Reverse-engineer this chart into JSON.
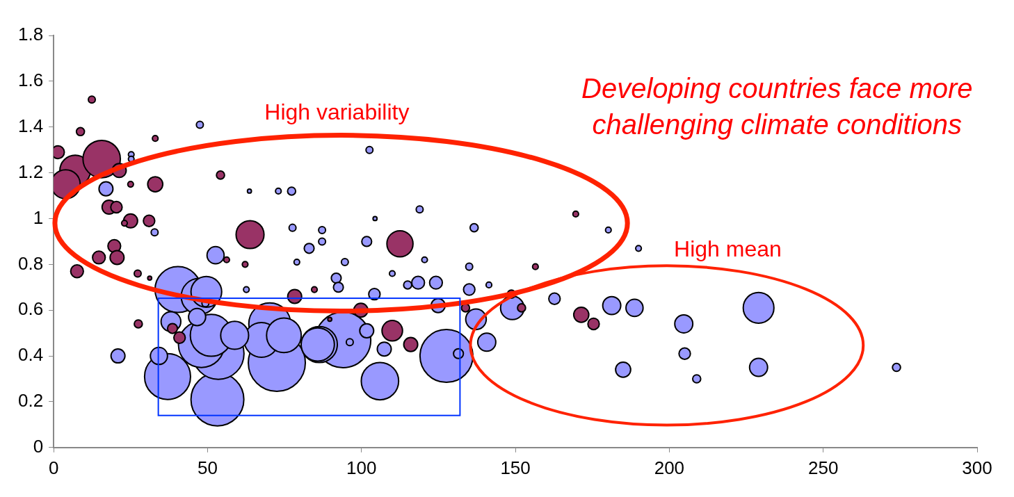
{
  "chart_data": {
    "type": "bubble",
    "xlim": [
      0,
      300
    ],
    "ylim": [
      0,
      1.8
    ],
    "xticks": [
      0,
      50,
      100,
      150,
      200,
      250,
      300
    ],
    "yticks": [
      0,
      0.2,
      0.4,
      0.6,
      0.8,
      1,
      1.2,
      1.4,
      1.6,
      1.8
    ],
    "grid": false,
    "legend": false,
    "annotations": [
      "High variability",
      "High mean",
      "Developing countries face more challenging climate conditions"
    ],
    "series": [
      {
        "color": "#993366",
        "x": [
          1.4,
          12.4,
          8.7,
          7,
          3.9,
          15.6,
          21.3,
          33,
          25,
          33,
          18,
          20.4,
          25,
          23,
          31,
          63.8,
          19.7,
          20.6,
          14.7,
          7.6,
          27.3,
          31.2,
          27.5,
          38.6,
          40.9,
          54.2,
          56.2,
          62.2,
          78.3,
          84.7,
          99.8,
          89.7,
          110,
          116,
          112.5,
          133.8,
          148.7,
          152,
          156.5,
          171.4,
          175.4,
          169.6
        ],
        "values": [
          1.29,
          1.52,
          1.38,
          1.21,
          1.15,
          1.26,
          1.21,
          1.35,
          1.15,
          1.15,
          1.05,
          1.05,
          0.99,
          0.98,
          0.99,
          0.93,
          0.88,
          0.83,
          0.83,
          0.77,
          0.76,
          0.74,
          0.54,
          0.52,
          0.48,
          1.19,
          0.82,
          0.8,
          0.66,
          0.69,
          0.6,
          0.56,
          0.51,
          0.45,
          0.89,
          0.61,
          0.67,
          0.61,
          0.79,
          0.58,
          0.54,
          1.02
        ],
        "sizes": [
          0.05,
          0.015,
          0.02,
          0.29,
          0.26,
          0.43,
          0.06,
          0.01,
          0.01,
          0.07,
          0.06,
          0.04,
          0.06,
          0.01,
          0.04,
          0.24,
          0.05,
          0.06,
          0.05,
          0.05,
          0.015,
          0.005,
          0.02,
          0.03,
          0.04,
          0.02,
          0.01,
          0.01,
          0.06,
          0.01,
          0.06,
          0.005,
          0.13,
          0.06,
          0.21,
          0.02,
          0.02,
          0.02,
          0.01,
          0.07,
          0.04,
          0.01
        ]
      },
      {
        "color": "#9999ff",
        "x": [
          72.5,
          94,
          53.2,
          127.6,
          53.5,
          37,
          48,
          40.4,
          70.2,
          51.2,
          106,
          47.3,
          86.3,
          67.5,
          74.8,
          85.8,
          49.6,
          229,
          58.8,
          149,
          137.2,
          38.1,
          140.7,
          181.3,
          204.7,
          229,
          52.6,
          46.6,
          34.2,
          188.7,
          185,
          17,
          20.9,
          107.4,
          101.7,
          124.9,
          118.4,
          124.2,
          135,
          104.2,
          162.7,
          205,
          83,
          101.7,
          91.8,
          92.5,
          131.5,
          77.3,
          136.6,
          115,
          208.9,
          273.8,
          47.5,
          102.6,
          118.9,
          32.8,
          77.6,
          87.2,
          87.2,
          94.6,
          135,
          96.2,
          49.3,
          25.2,
          25.2,
          73,
          120.5,
          79,
          110,
          141.4,
          62.6,
          180.2,
          190,
          104.4,
          63.6
        ],
        "values": [
          0.37,
          0.47,
          0.21,
          0.4,
          0.41,
          0.31,
          0.45,
          0.69,
          0.54,
          0.49,
          0.29,
          0.66,
          0.45,
          0.47,
          0.49,
          0.45,
          0.68,
          0.61,
          0.49,
          0.61,
          0.56,
          0.55,
          0.46,
          0.62,
          0.54,
          0.35,
          0.84,
          0.57,
          0.4,
          0.61,
          0.34,
          1.13,
          0.4,
          0.43,
          0.51,
          0.62,
          0.72,
          0.72,
          0.69,
          0.67,
          0.65,
          0.41,
          0.87,
          0.9,
          0.74,
          0.7,
          0.41,
          1.12,
          0.96,
          0.71,
          0.3,
          0.35,
          1.41,
          1.3,
          1.04,
          0.94,
          0.96,
          0.95,
          0.9,
          0.81,
          0.79,
          0.46,
          0.63,
          1.28,
          1.26,
          1.12,
          0.82,
          0.81,
          0.76,
          0.71,
          0.69,
          0.95,
          0.87,
          1,
          1.12
        ],
        "sizes": [
          1,
          0.95,
          0.86,
          0.86,
          0.81,
          0.65,
          0.65,
          0.65,
          0.54,
          0.54,
          0.43,
          0.4,
          0.4,
          0.37,
          0.37,
          0.34,
          0.29,
          0.29,
          0.24,
          0.17,
          0.13,
          0.12,
          0.1,
          0.1,
          0.1,
          0.1,
          0.09,
          0.09,
          0.09,
          0.09,
          0.07,
          0.06,
          0.06,
          0.06,
          0.06,
          0.06,
          0.05,
          0.05,
          0.04,
          0.04,
          0.04,
          0.04,
          0.03,
          0.03,
          0.03,
          0.03,
          0.03,
          0.02,
          0.02,
          0.02,
          0.02,
          0.02,
          0.015,
          0.015,
          0.015,
          0.015,
          0.015,
          0.015,
          0.015,
          0.015,
          0.015,
          0.015,
          0.015,
          0.01,
          0.01,
          0.01,
          0.01,
          0.01,
          0.01,
          0.01,
          0.01,
          0.01,
          0.01,
          0.005,
          0.005
        ]
      }
    ]
  }
}
